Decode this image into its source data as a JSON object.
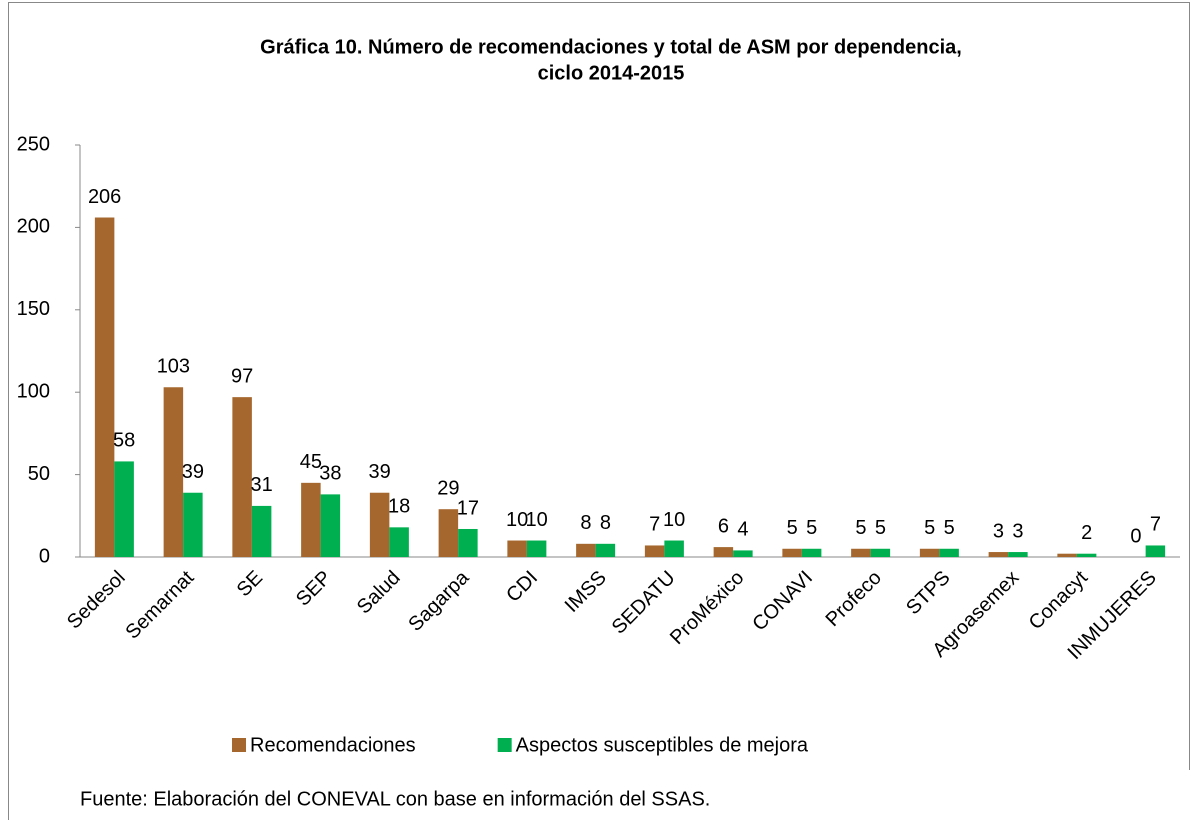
{
  "chart_data": {
    "type": "bar",
    "title": [
      "Gráfica 10. Número de recomendaciones y total de ASM por dependencia,",
      "ciclo 2014-2015"
    ],
    "categories": [
      "Sedesol",
      "Semarnat",
      "SE",
      "SEP",
      "Salud",
      "Sagarpa",
      "CDI",
      "IMSS",
      "SEDATU",
      "ProMéxico",
      "CONAVI",
      "Profeco",
      "STPS",
      "Agroasemex",
      "Conacyt",
      "INMUJERES"
    ],
    "series": [
      {
        "name": "Recomendaciones",
        "color": "#a5672d",
        "values": [
          206,
          103,
          97,
          45,
          39,
          29,
          10,
          8,
          7,
          6,
          5,
          5,
          5,
          3,
          2,
          0
        ],
        "value_labels": [
          "206",
          "103",
          "97",
          "45",
          "39",
          "29",
          "10",
          "8",
          "7",
          "6",
          "5",
          "5",
          "5",
          "3",
          null,
          "0"
        ]
      },
      {
        "name": "Aspectos susceptibles de mejora",
        "color": "#00b050",
        "values": [
          58,
          39,
          31,
          38,
          18,
          17,
          10,
          8,
          10,
          4,
          5,
          5,
          5,
          3,
          2,
          7
        ]
      }
    ],
    "ylim": [
      0,
      250
    ],
    "yticks": [
      0,
      50,
      100,
      150,
      200,
      250
    ],
    "legend": "bottom",
    "source": "Fuente: Elaboración del CONEVAL con base en información del SSAS."
  }
}
